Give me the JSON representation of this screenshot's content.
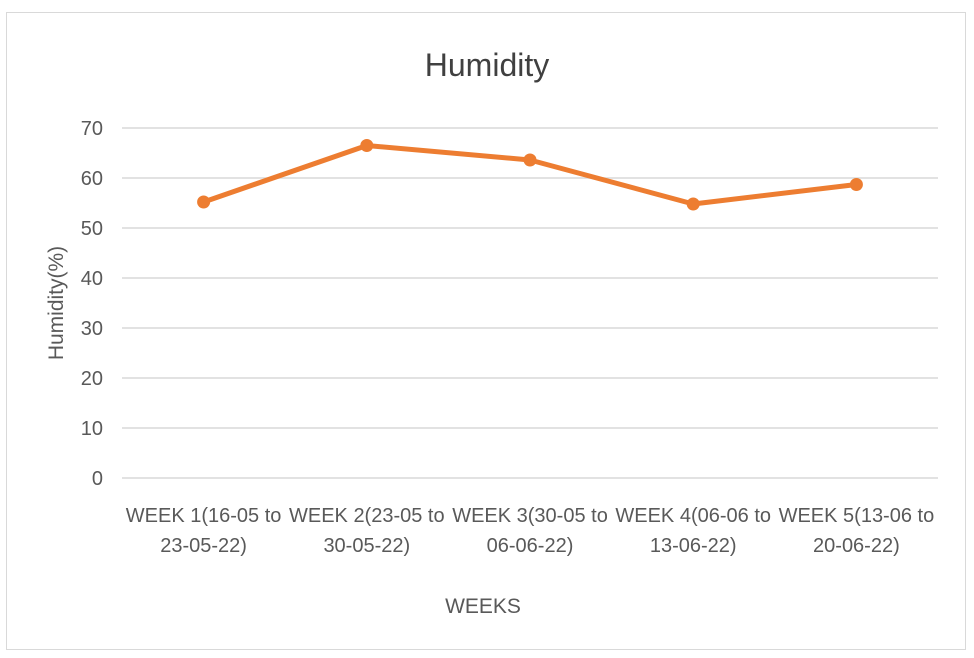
{
  "chart_data": {
    "type": "line",
    "title": "Humidity",
    "xlabel": "WEEKS",
    "ylabel": "Humidity(%)",
    "categories": [
      [
        "WEEK 1(16-05 to",
        "23-05-22)"
      ],
      [
        "WEEK 2(23-05 to",
        "30-05-22)"
      ],
      [
        "WEEK 3(30-05 to",
        "06-06-22)"
      ],
      [
        "WEEK 4(06-06 to",
        "13-06-22)"
      ],
      [
        "WEEK 5(13-06 to",
        "20-06-22)"
      ]
    ],
    "series": [
      {
        "values": [
          55.2,
          66.5,
          63.6,
          54.8,
          58.7
        ],
        "color": "#ed7d31"
      }
    ],
    "ylim": [
      0,
      70
    ],
    "yticks": [
      "0",
      "10",
      "20",
      "30",
      "40",
      "50",
      "60",
      "70"
    ],
    "grid": true,
    "legend": "none"
  }
}
